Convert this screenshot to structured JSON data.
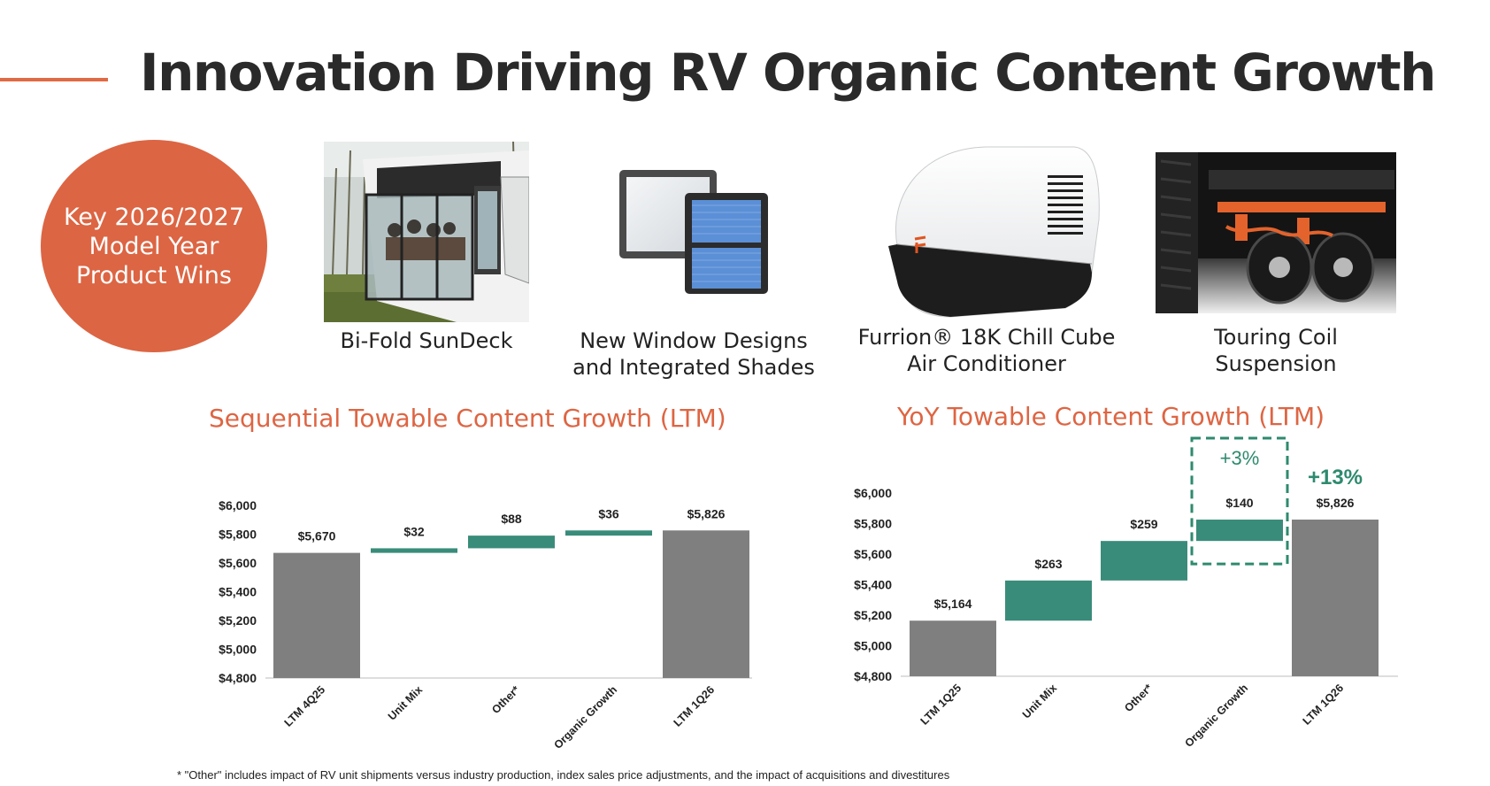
{
  "page": {
    "title": "Innovation Driving RV Organic Content Growth",
    "badge_lines": [
      "Key 2026/2027",
      "Model Year",
      "Product Wins"
    ],
    "footnote": "* \"Other\" includes impact of RV unit shipments versus industry production, index sales price adjustments, and the impact of acquisitions and divestitures"
  },
  "products": [
    {
      "caption_lines": [
        "Bi-Fold SunDeck"
      ],
      "icon": "sundeck-photo"
    },
    {
      "caption_lines": [
        "New Window Designs",
        "and Integrated Shades"
      ],
      "icon": "window-photo"
    },
    {
      "caption_lines": [
        "Furrion® 18K Chill Cube",
        "Air Conditioner"
      ],
      "icon": "air-conditioner-photo"
    },
    {
      "caption_lines": [
        "Touring Coil",
        "Suspension"
      ],
      "icon": "suspension-photo"
    }
  ],
  "colors": {
    "accent": "#dc6543",
    "total_bar": "#7f7f7f",
    "growth_bar": "#3a8c7a",
    "highlight": "#2e8a6e"
  },
  "chart_data": [
    {
      "type": "bar",
      "subtype": "waterfall",
      "title": "Sequential Towable Content Growth (LTM)",
      "categories": [
        "LTM 4Q25",
        "Unit Mix",
        "Other*",
        "Organic Growth",
        "LTM 1Q26"
      ],
      "values": [
        5670,
        32,
        88,
        36,
        5826
      ],
      "value_labels": [
        "$5,670",
        "$32",
        "$88",
        "$36",
        "$5,826"
      ],
      "kinds": [
        "total",
        "delta",
        "delta",
        "delta",
        "total"
      ],
      "yticks": [
        4800,
        5000,
        5200,
        5400,
        5600,
        5800,
        6000
      ],
      "ytick_labels": [
        "$4,800",
        "$5,000",
        "$5,200",
        "$5,400",
        "$5,600",
        "$5,800",
        "$6,000"
      ],
      "ylim": [
        4800,
        6000
      ]
    },
    {
      "type": "bar",
      "subtype": "waterfall",
      "title": "YoY Towable Content Growth (LTM)",
      "categories": [
        "LTM 1Q25",
        "Unit Mix",
        "Other*",
        "Organic Growth",
        "LTM 1Q26"
      ],
      "values": [
        5164,
        263,
        259,
        140,
        5826
      ],
      "value_labels": [
        "$5,164",
        "$263",
        "$259",
        "$140",
        "$5,826"
      ],
      "kinds": [
        "total",
        "delta",
        "delta",
        "delta",
        "total"
      ],
      "yticks": [
        4800,
        5000,
        5200,
        5400,
        5600,
        5800,
        6000
      ],
      "ytick_labels": [
        "$4,800",
        "$5,000",
        "$5,200",
        "$5,400",
        "$5,600",
        "$5,800",
        "$6,000"
      ],
      "ylim": [
        4800,
        6000
      ],
      "annotations": [
        {
          "text": "+3%",
          "target": "Organic Growth",
          "boxed": true
        },
        {
          "text": "+13%",
          "target": "LTM 1Q26",
          "boxed": false
        }
      ]
    }
  ]
}
